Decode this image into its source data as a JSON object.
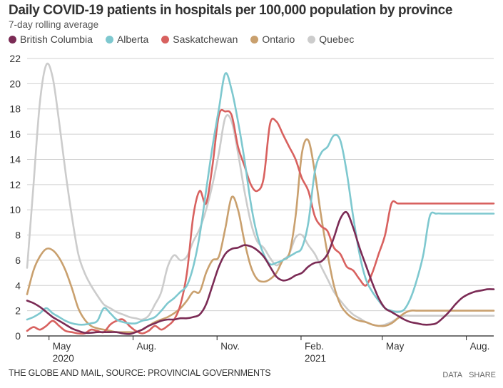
{
  "header": {
    "title": "Daily COVID-19 patients in hospitals per 100,000 population by province",
    "subtitle": "7-day rolling average"
  },
  "legend": [
    {
      "label": "British Columbia",
      "color": "#7b2b55"
    },
    {
      "label": "Alberta",
      "color": "#7ec8cf"
    },
    {
      "label": "Saskatchewan",
      "color": "#d8615f"
    },
    {
      "label": "Ontario",
      "color": "#c9a06e"
    },
    {
      "label": "Quebec",
      "color": "#cccccc"
    }
  ],
  "footer": {
    "source": "THE GLOBE AND MAIL, SOURCE: PROVINCIAL GOVERNMENTS",
    "data_label": "DATA",
    "share_label": "SHARE"
  },
  "chart_data": {
    "type": "line",
    "title": "Daily COVID-19 patients in hospitals per 100,000 population by province",
    "subtitle": "7-day rolling average",
    "xlabel": "",
    "ylabel": "",
    "x_unit": "days since 2020-04-07",
    "xlim": [
      0,
      511
    ],
    "ylim": [
      0,
      22
    ],
    "y_ticks": [
      0,
      2,
      4,
      6,
      8,
      10,
      12,
      14,
      16,
      18,
      20,
      22
    ],
    "x_ticks": [
      {
        "day": 24,
        "label": "May",
        "sublabel": "2020"
      },
      {
        "day": 116,
        "label": "Aug.",
        "sublabel": ""
      },
      {
        "day": 208,
        "label": "Nov.",
        "sublabel": ""
      },
      {
        "day": 300,
        "label": "Feb.",
        "sublabel": "2021"
      },
      {
        "day": 389,
        "label": "May",
        "sublabel": ""
      },
      {
        "day": 481,
        "label": "Aug.",
        "sublabel": ""
      }
    ],
    "grid": true,
    "legend_position": "top-left",
    "x": [
      0,
      7,
      14,
      21,
      28,
      35,
      42,
      49,
      56,
      63,
      70,
      77,
      84,
      91,
      98,
      105,
      112,
      119,
      126,
      133,
      140,
      147,
      154,
      161,
      168,
      175,
      182,
      189,
      196,
      203,
      210,
      217,
      224,
      231,
      238,
      245,
      252,
      259,
      266,
      273,
      280,
      287,
      294,
      301,
      308,
      315,
      322,
      329,
      336,
      343,
      350,
      357,
      364,
      371,
      378,
      385,
      392,
      399,
      406,
      413,
      420,
      427,
      434,
      441,
      448,
      455,
      462,
      469,
      476,
      483,
      490,
      497,
      504,
      511
    ],
    "series": [
      {
        "name": "British Columbia",
        "color": "#7b2b55",
        "values": [
          2.8,
          2.6,
          2.3,
          1.9,
          1.5,
          1.2,
          0.9,
          0.6,
          0.4,
          0.25,
          0.25,
          0.3,
          0.3,
          0.3,
          0.3,
          0.2,
          0.15,
          0.3,
          0.5,
          0.8,
          1.0,
          1.2,
          1.3,
          1.3,
          1.4,
          1.4,
          1.5,
          1.7,
          2.5,
          4.0,
          5.5,
          6.5,
          6.9,
          7.0,
          7.2,
          7.1,
          6.8,
          6.3,
          5.5,
          4.7,
          4.4,
          4.5,
          4.8,
          5.0,
          5.5,
          5.8,
          5.9,
          6.5,
          7.8,
          9.3,
          9.8,
          8.6,
          7.0,
          5.6,
          4.2,
          3.0,
          2.2,
          1.9,
          1.6,
          1.3,
          1.1,
          1.0,
          0.9,
          0.9,
          1.0,
          1.4,
          1.9,
          2.5,
          3.0,
          3.3,
          3.5,
          3.6,
          3.7,
          3.7
        ]
      },
      {
        "name": "Alberta",
        "color": "#7ec8cf",
        "values": [
          1.3,
          1.5,
          1.8,
          2.2,
          1.8,
          1.5,
          1.2,
          1.0,
          0.9,
          0.9,
          1.0,
          1.2,
          2.2,
          1.8,
          1.3,
          1.1,
          1.0,
          1.0,
          1.2,
          1.3,
          1.5,
          2.0,
          2.6,
          3.0,
          3.5,
          4.0,
          5.5,
          8.0,
          11.5,
          15.0,
          18.0,
          20.8,
          19.5,
          17.0,
          14.0,
          10.5,
          8.0,
          6.5,
          5.7,
          5.8,
          6.0,
          6.3,
          6.6,
          7.0,
          9.0,
          13.0,
          14.5,
          15.0,
          15.9,
          15.5,
          13.0,
          9.5,
          6.5,
          4.5,
          3.5,
          2.8,
          2.2,
          2.0,
          1.9,
          2.1,
          3.0,
          4.5,
          6.5,
          9.5,
          9.7,
          9.7,
          9.7,
          9.7,
          9.7,
          9.7,
          9.7,
          9.7,
          9.7,
          9.7
        ]
      },
      {
        "name": "Saskatchewan",
        "color": "#d8615f",
        "values": [
          0.4,
          0.7,
          0.5,
          0.8,
          1.2,
          0.8,
          0.4,
          0.3,
          0.2,
          0.2,
          0.5,
          0.4,
          0.3,
          0.9,
          1.2,
          1.3,
          0.8,
          0.4,
          0.2,
          0.4,
          0.8,
          0.5,
          0.8,
          1.3,
          2.5,
          5.0,
          9.5,
          11.5,
          10.5,
          13.5,
          17.5,
          17.8,
          17.5,
          15.0,
          13.5,
          12.0,
          11.5,
          12.5,
          16.8,
          17.0,
          16.0,
          15.0,
          14.0,
          12.5,
          11.5,
          9.5,
          8.7,
          8.3,
          7.0,
          6.5,
          5.5,
          5.2,
          4.5,
          4.0,
          5.0,
          6.5,
          8.0,
          10.5,
          10.5,
          10.5,
          10.5,
          10.5,
          10.5,
          10.5,
          10.5,
          10.5,
          10.5,
          10.5,
          10.5,
          10.5,
          10.5,
          10.5,
          10.5,
          10.5
        ]
      },
      {
        "name": "Ontario",
        "color": "#c9a06e",
        "values": [
          3.3,
          5.2,
          6.3,
          6.9,
          6.8,
          6.2,
          5.2,
          3.8,
          2.2,
          1.3,
          0.8,
          0.6,
          0.5,
          0.4,
          0.3,
          0.3,
          0.3,
          0.3,
          0.5,
          0.8,
          1.1,
          1.3,
          1.5,
          1.8,
          2.2,
          2.8,
          3.5,
          3.5,
          5.0,
          6.0,
          6.3,
          8.5,
          11.0,
          10.0,
          7.5,
          5.5,
          4.5,
          4.3,
          4.5,
          5.0,
          6.0,
          6.5,
          9.5,
          14.5,
          15.5,
          13.0,
          9.5,
          6.5,
          4.0,
          2.5,
          1.8,
          1.4,
          1.2,
          1.1,
          0.9,
          0.8,
          0.8,
          1.0,
          1.4,
          1.8,
          2.0,
          2.0,
          2.0,
          2.0,
          2.0,
          2.0,
          2.0,
          2.0,
          2.0,
          2.0,
          2.0,
          2.0,
          2.0,
          2.0
        ]
      },
      {
        "name": "Quebec",
        "color": "#cccccc",
        "values": [
          5.4,
          12.0,
          18.5,
          21.5,
          20.5,
          17.0,
          13.0,
          9.5,
          6.5,
          5.0,
          4.0,
          3.2,
          2.5,
          2.2,
          1.9,
          1.7,
          1.5,
          1.4,
          1.3,
          1.6,
          2.5,
          3.5,
          5.5,
          6.4,
          6.0,
          6.3,
          7.5,
          8.5,
          10.0,
          12.0,
          14.5,
          17.3,
          17.0,
          14.5,
          11.5,
          9.0,
          7.5,
          7.0,
          6.2,
          5.6,
          6.0,
          6.5,
          7.8,
          8.0,
          7.2,
          6.5,
          5.5,
          4.5,
          3.5,
          2.8,
          2.2,
          1.7,
          1.4,
          1.1,
          0.9,
          0.8,
          0.9,
          1.1,
          1.4,
          1.6,
          1.6,
          1.6,
          1.6,
          1.6,
          1.6,
          1.6,
          1.6,
          1.6,
          1.6,
          1.6,
          1.6,
          1.6,
          1.6,
          1.6
        ]
      }
    ]
  }
}
